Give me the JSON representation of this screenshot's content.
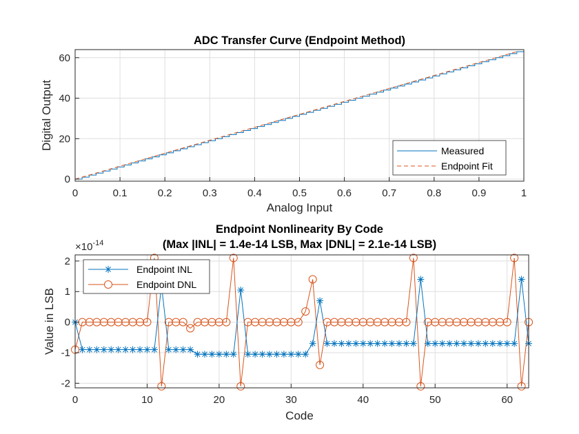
{
  "chart_data": [
    {
      "type": "line",
      "title": "ADC Transfer Curve (Endpoint Method)",
      "xlabel": "Analog Input",
      "ylabel": "Digital Output",
      "xlim": [
        0,
        1
      ],
      "ylim": [
        -1,
        64
      ],
      "xticks": [
        "0",
        "0.1",
        "0.2",
        "0.3",
        "0.4",
        "0.5",
        "0.6",
        "0.7",
        "0.8",
        "0.9",
        "1"
      ],
      "yticks": [
        "0",
        "20",
        "40",
        "60"
      ],
      "grid": true,
      "legend_location": "bottom-right",
      "colors": {
        "measured": "#0072BD",
        "fit": "#D95319"
      },
      "series": [
        {
          "name": "Measured",
          "style": "stairs",
          "codes": 64,
          "x_start": 0,
          "x_end": 0.984375,
          "y_start": 0,
          "y_end": 63
        },
        {
          "name": "Endpoint Fit",
          "style": "dashed",
          "x": [
            0,
            0.984375
          ],
          "y": [
            0,
            63
          ]
        }
      ],
      "legend": [
        "Measured",
        "Endpoint Fit"
      ]
    },
    {
      "type": "line",
      "title": "Endpoint Nonlinearity By Code",
      "subtitle": "(Max |INL| = 1.4e-14 LSB, Max |DNL| = 2.1e-14 LSB)",
      "xlabel": "Code",
      "ylabel": "Value in LSB",
      "exponent_label": "×10",
      "exponent_power": "-14",
      "xlim": [
        0,
        63
      ],
      "ylim": [
        -2.15,
        2.2
      ],
      "xticks": [
        "0",
        "10",
        "20",
        "30",
        "40",
        "50",
        "60"
      ],
      "yticks": [
        "-2",
        "-1",
        "0",
        "1",
        "2"
      ],
      "grid": true,
      "legend_location": "top-left",
      "colors": {
        "inl": "#0072BD",
        "dnl": "#D95319"
      },
      "series": [
        {
          "name": "Endpoint INL",
          "marker": "asterisk",
          "y": [
            0,
            -0.9,
            -0.9,
            -0.9,
            -0.9,
            -0.9,
            -0.9,
            -0.9,
            -0.9,
            -0.9,
            -0.9,
            -0.9,
            1.2,
            -0.9,
            -0.9,
            -0.9,
            -0.9,
            -1.05,
            -1.05,
            -1.05,
            -1.05,
            -1.05,
            -1.05,
            1.05,
            -1.05,
            -1.05,
            -1.05,
            -1.05,
            -1.05,
            -1.05,
            -1.05,
            -1.05,
            -1.05,
            -0.7,
            0.7,
            -0.7,
            -0.7,
            -0.7,
            -0.7,
            -0.7,
            -0.7,
            -0.7,
            -0.7,
            -0.7,
            -0.7,
            -0.7,
            -0.7,
            -0.7,
            1.4,
            -0.7,
            -0.7,
            -0.7,
            -0.7,
            -0.7,
            -0.7,
            -0.7,
            -0.7,
            -0.7,
            -0.7,
            -0.7,
            -0.7,
            -0.7,
            1.4,
            -0.7
          ]
        },
        {
          "name": "Endpoint DNL",
          "marker": "circle",
          "y": [
            -0.9,
            0,
            0,
            0,
            0,
            0,
            0,
            0,
            0,
            0,
            0,
            2.1,
            -2.1,
            0,
            0,
            0,
            -0.2,
            0,
            0,
            0,
            0,
            0,
            2.1,
            -2.1,
            0,
            0,
            0,
            0,
            0,
            0,
            0,
            0,
            0.35,
            1.4,
            -1.4,
            0,
            0,
            0,
            0,
            0,
            0,
            0,
            0,
            0,
            0,
            0,
            0,
            2.1,
            -2.1,
            0,
            0,
            0,
            0,
            0,
            0,
            0,
            0,
            0,
            0,
            0,
            0,
            2.1,
            -2.1,
            0
          ]
        }
      ],
      "legend": [
        "Endpoint INL",
        "Endpoint DNL"
      ]
    }
  ]
}
